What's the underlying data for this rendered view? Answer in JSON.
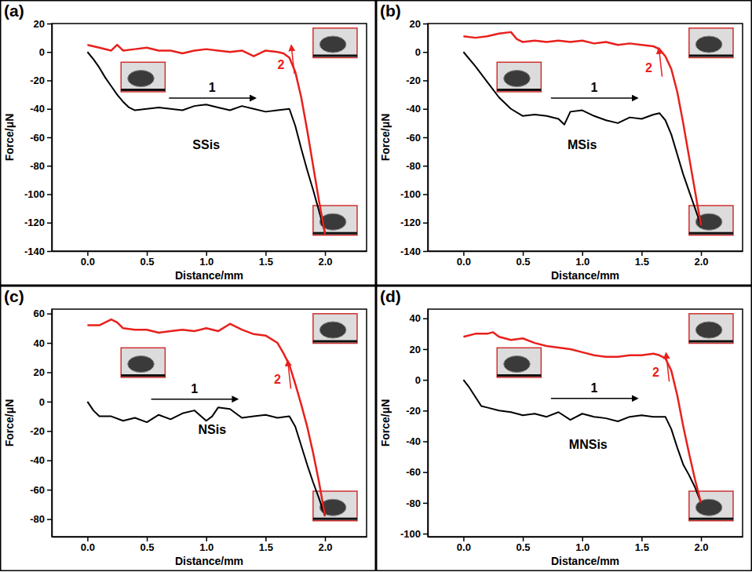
{
  "chart_data": [
    {
      "type": "line",
      "title": "(a)",
      "x_label": "Distance/mm",
      "y_label": "Force/μN",
      "xlim": [
        -0.3,
        2.35
      ],
      "xticks": [
        {
          "value": 0,
          "label": "0.0"
        },
        {
          "value": 0.5,
          "label": "0.5"
        },
        {
          "value": 1,
          "label": "1.0"
        },
        {
          "value": 1.5,
          "label": "1.5"
        },
        {
          "value": 2,
          "label": "2.0"
        }
      ],
      "ylim": [
        -140,
        20
      ],
      "yticks": [
        -140,
        -120,
        -100,
        -80,
        -60,
        -40,
        -20,
        0,
        20
      ],
      "grid": false,
      "series": [
        {
          "color": "#000000",
          "line_style": "solid",
          "x": [
            0,
            0.05,
            0.1,
            0.15,
            0.2,
            0.25,
            0.3,
            0.35,
            0.4,
            0.5,
            0.6,
            0.7,
            0.8,
            0.9,
            1.0,
            1.1,
            1.2,
            1.3,
            1.4,
            1.5,
            1.6,
            1.7,
            1.75,
            1.8,
            1.85,
            1.9,
            1.95,
            2.0
          ],
          "values": [
            0,
            -5,
            -11,
            -18,
            -24,
            -30,
            -35,
            -39,
            -41,
            -40,
            -39,
            -40,
            -41,
            -38,
            -37,
            -39,
            -41,
            -38,
            -40,
            -42,
            -41,
            -40,
            -52,
            -68,
            -83,
            -97,
            -112,
            -127
          ]
        },
        {
          "color": "#e8201c",
          "line_style": "solid",
          "x": [
            2.0,
            1.95,
            1.9,
            1.85,
            1.8,
            1.75,
            1.7,
            1.65,
            1.6,
            1.5,
            1.4,
            1.3,
            1.2,
            1.1,
            1.0,
            0.9,
            0.8,
            0.7,
            0.6,
            0.5,
            0.4,
            0.3,
            0.25,
            0.2,
            0.1,
            0.0
          ],
          "values": [
            -128,
            -105,
            -80,
            -55,
            -32,
            -14,
            -4,
            -1,
            0,
            1,
            -3,
            1,
            0,
            1,
            2,
            1,
            -1,
            1,
            1,
            3,
            2,
            1,
            5,
            1,
            3,
            5
          ]
        }
      ],
      "annotations": [
        {
          "text": "SSis",
          "x": 1.0,
          "y": -68,
          "type": "text",
          "color": "#000000"
        },
        {
          "text": "1",
          "x": 1.05,
          "y": -28,
          "type": "arrow-right",
          "color": "#000000"
        },
        {
          "text": "2",
          "x": 1.63,
          "y": -12,
          "type": "arrow-up",
          "color": "#e8201c"
        }
      ]
    },
    {
      "type": "line",
      "title": "(b)",
      "x_label": "Distance/mm",
      "y_label": "Force/μN",
      "xlim": [
        -0.3,
        2.35
      ],
      "xticks": [
        {
          "value": 0,
          "label": "0.0"
        },
        {
          "value": 0.5,
          "label": "0.5"
        },
        {
          "value": 1,
          "label": "1.0"
        },
        {
          "value": 1.5,
          "label": "1.5"
        },
        {
          "value": 2,
          "label": "2.0"
        }
      ],
      "ylim": [
        -140,
        20
      ],
      "yticks": [
        -140,
        -120,
        -100,
        -80,
        -60,
        -40,
        -20,
        0,
        20
      ],
      "grid": false,
      "series": [
        {
          "color": "#000000",
          "line_style": "solid",
          "x": [
            0,
            0.1,
            0.2,
            0.3,
            0.4,
            0.5,
            0.6,
            0.7,
            0.8,
            0.85,
            0.9,
            1.0,
            1.1,
            1.2,
            1.3,
            1.4,
            1.5,
            1.6,
            1.65,
            1.7,
            1.75,
            1.8,
            1.85,
            1.9,
            1.95,
            2.0
          ],
          "values": [
            0,
            -10,
            -21,
            -32,
            -40,
            -45,
            -44,
            -45,
            -47,
            -51,
            -42,
            -41,
            -45,
            -48,
            -50,
            -46,
            -47,
            -44,
            -43,
            -48,
            -58,
            -72,
            -86,
            -98,
            -110,
            -122
          ]
        },
        {
          "color": "#e8201c",
          "line_style": "solid",
          "x": [
            2.0,
            1.95,
            1.9,
            1.85,
            1.8,
            1.75,
            1.7,
            1.65,
            1.6,
            1.5,
            1.4,
            1.3,
            1.2,
            1.1,
            1.0,
            0.9,
            0.8,
            0.7,
            0.6,
            0.5,
            0.45,
            0.4,
            0.3,
            0.2,
            0.1,
            0.0
          ],
          "values": [
            -122,
            -98,
            -74,
            -50,
            -28,
            -12,
            -3,
            2,
            4,
            5,
            6,
            5,
            7,
            6,
            8,
            7,
            8,
            7,
            8,
            7,
            9,
            14,
            13,
            11,
            10,
            11
          ]
        }
      ],
      "annotations": [
        {
          "text": "MSis",
          "x": 1.0,
          "y": -68,
          "type": "text",
          "color": "#000000"
        },
        {
          "text": "1",
          "x": 1.1,
          "y": -28,
          "type": "arrow-right",
          "color": "#000000"
        },
        {
          "text": "2",
          "x": 1.56,
          "y": -14,
          "type": "arrow-up",
          "color": "#e8201c"
        }
      ]
    },
    {
      "type": "line",
      "title": "(c)",
      "x_label": "Distance/mm",
      "y_label": "Force/μN",
      "xlim": [
        -0.3,
        2.35
      ],
      "xticks": [
        {
          "value": 0,
          "label": "0.0"
        },
        {
          "value": 0.5,
          "label": "0.5"
        },
        {
          "value": 1,
          "label": "1.0"
        },
        {
          "value": 1.5,
          "label": "1.5"
        },
        {
          "value": 2,
          "label": "2.0"
        }
      ],
      "ylim": [
        -92,
        63
      ],
      "yticks": [
        -80,
        -60,
        -40,
        -20,
        0,
        20,
        40,
        60
      ],
      "grid": false,
      "series": [
        {
          "color": "#000000",
          "line_style": "solid",
          "x": [
            0,
            0.05,
            0.1,
            0.2,
            0.3,
            0.4,
            0.5,
            0.6,
            0.7,
            0.8,
            0.9,
            1.0,
            1.05,
            1.1,
            1.2,
            1.3,
            1.4,
            1.5,
            1.6,
            1.7,
            1.75,
            1.8,
            1.85,
            1.9,
            1.95,
            2.0
          ],
          "values": [
            0,
            -6,
            -10,
            -10,
            -13,
            -11,
            -14,
            -9,
            -12,
            -8,
            -6,
            -13,
            -10,
            -4,
            -5,
            -11,
            -10,
            -9,
            -11,
            -10,
            -17,
            -30,
            -43,
            -55,
            -66,
            -78
          ]
        },
        {
          "color": "#e8201c",
          "line_style": "solid",
          "x": [
            2.0,
            1.95,
            1.9,
            1.85,
            1.8,
            1.75,
            1.7,
            1.65,
            1.6,
            1.5,
            1.4,
            1.3,
            1.2,
            1.1,
            1.0,
            0.9,
            0.8,
            0.7,
            0.6,
            0.5,
            0.4,
            0.3,
            0.25,
            0.2,
            0.1,
            0.0
          ],
          "values": [
            -78,
            -55,
            -35,
            -17,
            -2,
            12,
            25,
            33,
            40,
            45,
            46,
            49,
            53,
            48,
            50,
            48,
            49,
            48,
            47,
            49,
            49,
            50,
            54,
            56,
            52,
            52
          ]
        }
      ],
      "annotations": [
        {
          "text": "NSis",
          "x": 1.05,
          "y": -22,
          "type": "text",
          "color": "#000000"
        },
        {
          "text": "1",
          "x": 0.9,
          "y": 6,
          "type": "arrow-right",
          "color": "#000000"
        },
        {
          "text": "2",
          "x": 1.6,
          "y": 12,
          "type": "arrow-up",
          "color": "#e8201c"
        }
      ]
    },
    {
      "type": "line",
      "title": "(d)",
      "x_label": "Distance/mm",
      "y_label": "Force/μN",
      "xlim": [
        -0.3,
        2.35
      ],
      "xticks": [
        {
          "value": 0,
          "label": "0.0"
        },
        {
          "value": 0.5,
          "label": "0.5"
        },
        {
          "value": 1,
          "label": "1.0"
        },
        {
          "value": 1.5,
          "label": "1.5"
        },
        {
          "value": 2,
          "label": "2.0"
        }
      ],
      "ylim": [
        -102,
        46
      ],
      "yticks": [
        -100,
        -80,
        -60,
        -40,
        -20,
        0,
        20,
        40
      ],
      "grid": false,
      "series": [
        {
          "color": "#000000",
          "line_style": "solid",
          "x": [
            0,
            0.05,
            0.1,
            0.15,
            0.2,
            0.3,
            0.4,
            0.5,
            0.6,
            0.7,
            0.8,
            0.9,
            1.0,
            1.1,
            1.2,
            1.3,
            1.4,
            1.5,
            1.6,
            1.7,
            1.75,
            1.8,
            1.85,
            1.9,
            1.95,
            2.0
          ],
          "values": [
            0,
            -5,
            -11,
            -17,
            -18,
            -20,
            -21,
            -23,
            -22,
            -24,
            -21,
            -26,
            -22,
            -24,
            -25,
            -27,
            -24,
            -23,
            -24,
            -24,
            -32,
            -44,
            -55,
            -62,
            -70,
            -80
          ]
        },
        {
          "color": "#e8201c",
          "line_style": "solid",
          "x": [
            2.0,
            1.95,
            1.9,
            1.85,
            1.8,
            1.75,
            1.7,
            1.65,
            1.6,
            1.5,
            1.4,
            1.3,
            1.2,
            1.1,
            1.0,
            0.9,
            0.8,
            0.7,
            0.6,
            0.5,
            0.4,
            0.3,
            0.25,
            0.2,
            0.1,
            0.0
          ],
          "values": [
            -80,
            -65,
            -48,
            -30,
            -10,
            6,
            14,
            16,
            17,
            16,
            16,
            15,
            15,
            16,
            18,
            20,
            21,
            22,
            24,
            27,
            26,
            28,
            31,
            30,
            30,
            28
          ]
        }
      ],
      "annotations": [
        {
          "text": "MNSis",
          "x": 1.05,
          "y": -45,
          "type": "text",
          "color": "#000000"
        },
        {
          "text": "1",
          "x": 1.1,
          "y": -8,
          "type": "arrow-right",
          "color": "#000000"
        },
        {
          "text": "2",
          "x": 1.62,
          "y": 2,
          "type": "arrow-up",
          "color": "#e8201c"
        }
      ]
    }
  ]
}
